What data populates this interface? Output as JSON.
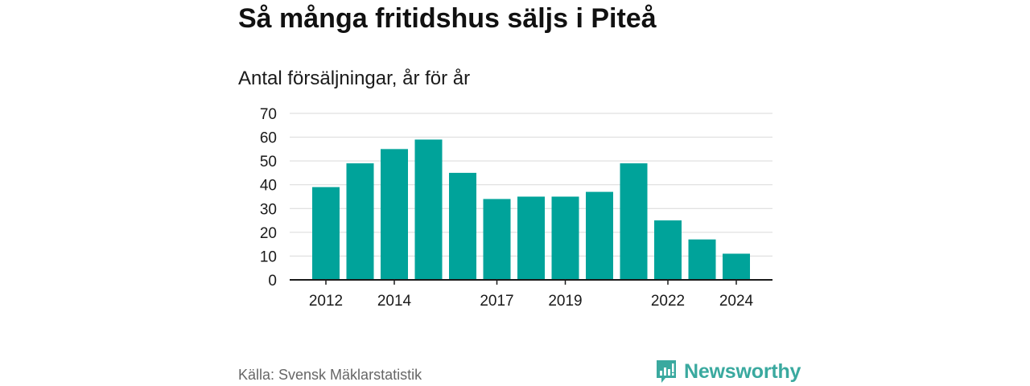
{
  "title": "Så många fritidshus säljs i Piteå",
  "subtitle": "Antal försäljningar, år för år",
  "source": "Källa: Svensk Mäklarstatistik",
  "brand": {
    "name": "Newsworthy",
    "icon": "newsworthy-chart-bubble-icon",
    "color": "#3aa99f"
  },
  "colors": {
    "bar": "#00a39a",
    "grid": "#d9d9d9",
    "axis": "#1a1a1a"
  },
  "chart_data": {
    "type": "bar",
    "title": "Så många fritidshus säljs i Piteå",
    "subtitle": "Antal försäljningar, år för år",
    "categories": [
      "2012",
      "2013",
      "2014",
      "2015",
      "2016",
      "2017",
      "2018",
      "2019",
      "2020",
      "2021",
      "2022",
      "2023",
      "2024"
    ],
    "values": [
      39,
      49,
      55,
      59,
      45,
      34,
      35,
      35,
      37,
      49,
      25,
      17,
      11
    ],
    "x_tick_labels": [
      "2012",
      "2014",
      "2017",
      "2019",
      "2022",
      "2024"
    ],
    "y_ticks": [
      0,
      10,
      20,
      30,
      40,
      50,
      60,
      70
    ],
    "ylim": [
      0,
      70
    ],
    "xlabel": "",
    "ylabel": "",
    "grid": true,
    "legend": "none"
  }
}
